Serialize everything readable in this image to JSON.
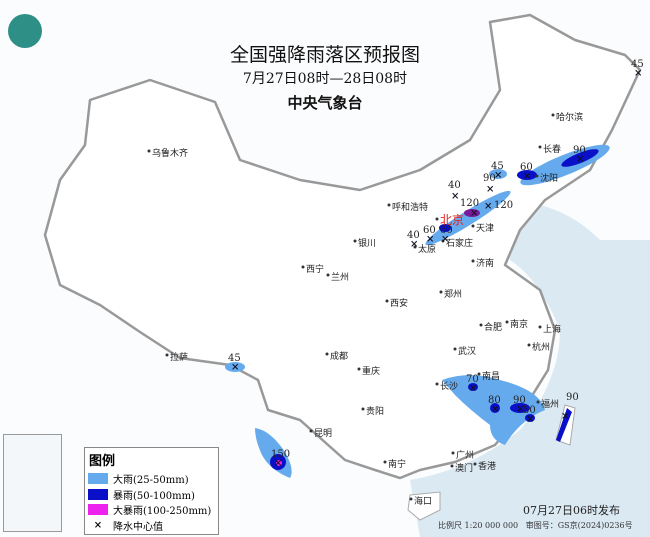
{
  "header": {
    "title": "全国强降雨落区预报图",
    "period": "7月27日08时—28日08时",
    "agency": "中央气象台"
  },
  "legend": {
    "title": "图例",
    "items": [
      {
        "label": "大雨(25-50mm)",
        "color": "#66aaee"
      },
      {
        "label": "暴雨(50-100mm)",
        "color": "#0a10c8"
      },
      {
        "label": "大暴雨(100-250mm)",
        "color": "#ee22ee"
      },
      {
        "label": "降水中心值",
        "symbol": "×"
      }
    ]
  },
  "footer": {
    "published": "07月27日06时发布",
    "scale": "比例尺 1:20 000 000",
    "review_no": "审图号：GS京(2024)0236号"
  },
  "cities": [
    "乌鲁木齐",
    "哈尔滨",
    "长春",
    "沈阳",
    "呼和浩特",
    "北京",
    "天津",
    "银川",
    "太原",
    "石家庄",
    "西宁",
    "兰州",
    "济南",
    "郑州",
    "西安",
    "合肥",
    "南京",
    "上海",
    "拉萨",
    "成都",
    "武汉",
    "杭州",
    "重庆",
    "长沙",
    "南昌",
    "福州",
    "贵阳",
    "昆明",
    "南宁",
    "广州",
    "香港",
    "澳门",
    "海口"
  ],
  "rain_centers": [
    "45",
    "90",
    "60",
    "45",
    "90",
    "40",
    "120",
    "120",
    "60",
    "60",
    "40",
    "45",
    "150",
    "70",
    "80",
    "90",
    "50",
    "90"
  ],
  "colors": {
    "sea": "#d8e8f2",
    "land": "#ffffff",
    "border": "#999999",
    "heavy": "#66aaee",
    "storm": "#0a10c8",
    "severe": "#ee22ee",
    "capital": "#e02020"
  }
}
